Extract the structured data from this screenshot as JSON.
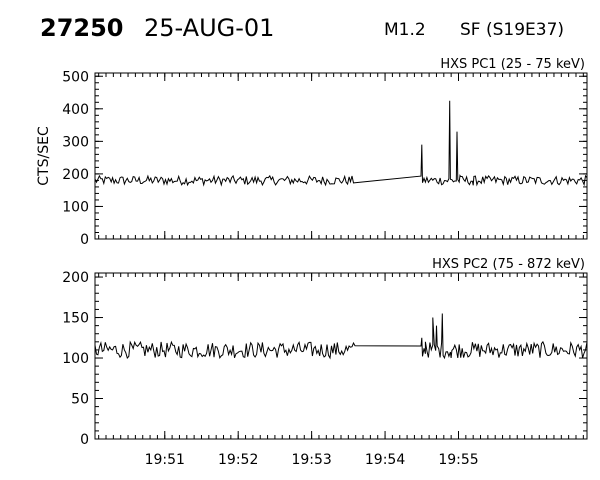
{
  "header": {
    "event_number": "27250",
    "date": "25-AUG-01",
    "flare_class": "M1.2",
    "flare_info": "SF (S19E37)"
  },
  "chart_data": [
    {
      "type": "line",
      "title": "HXS PC1 (25 - 75 keV)",
      "ylabel": "CTS/SEC",
      "ylim": [
        0,
        510
      ],
      "yticks": [
        "0",
        "100",
        "200",
        "300",
        "400",
        "500"
      ],
      "ytick_values": [
        0,
        100,
        200,
        300,
        400,
        500
      ],
      "xlim_min": [
        0,
        6.7
      ],
      "baseline": 180,
      "noise": 14,
      "gap": [
        3.6,
        4.45
      ],
      "peak": [
        {
          "t": 4.5,
          "v": 290
        },
        {
          "t": 4.88,
          "v": 425
        },
        {
          "t": 4.98,
          "v": 330
        },
        {
          "t": 5.02,
          "v": 195
        },
        {
          "t": 5.2,
          "v": 165
        }
      ],
      "color": "#000000"
    },
    {
      "type": "line",
      "title": "HXS PC2 (75 - 872 keV)",
      "ylabel": "",
      "ylim": [
        0,
        205
      ],
      "yticks": [
        "0",
        "50",
        "100",
        "150",
        "200"
      ],
      "ytick_values": [
        0,
        50,
        100,
        150,
        200
      ],
      "xlim_min": [
        0,
        6.7
      ],
      "baseline": 110,
      "noise": 10,
      "gap": [
        3.6,
        4.45
      ],
      "peak": [
        {
          "t": 4.5,
          "v": 125
        },
        {
          "t": 4.55,
          "v": 120
        },
        {
          "t": 4.65,
          "v": 150
        },
        {
          "t": 4.7,
          "v": 140
        },
        {
          "t": 4.78,
          "v": 155
        },
        {
          "t": 4.9,
          "v": 100
        }
      ],
      "color": "#000000"
    }
  ],
  "x_axis": {
    "tick_labels": [
      "19:51",
      "19:52",
      "19:53",
      "19:54",
      "19:55"
    ],
    "tick_minutes": [
      1,
      2,
      3,
      4,
      5
    ]
  }
}
